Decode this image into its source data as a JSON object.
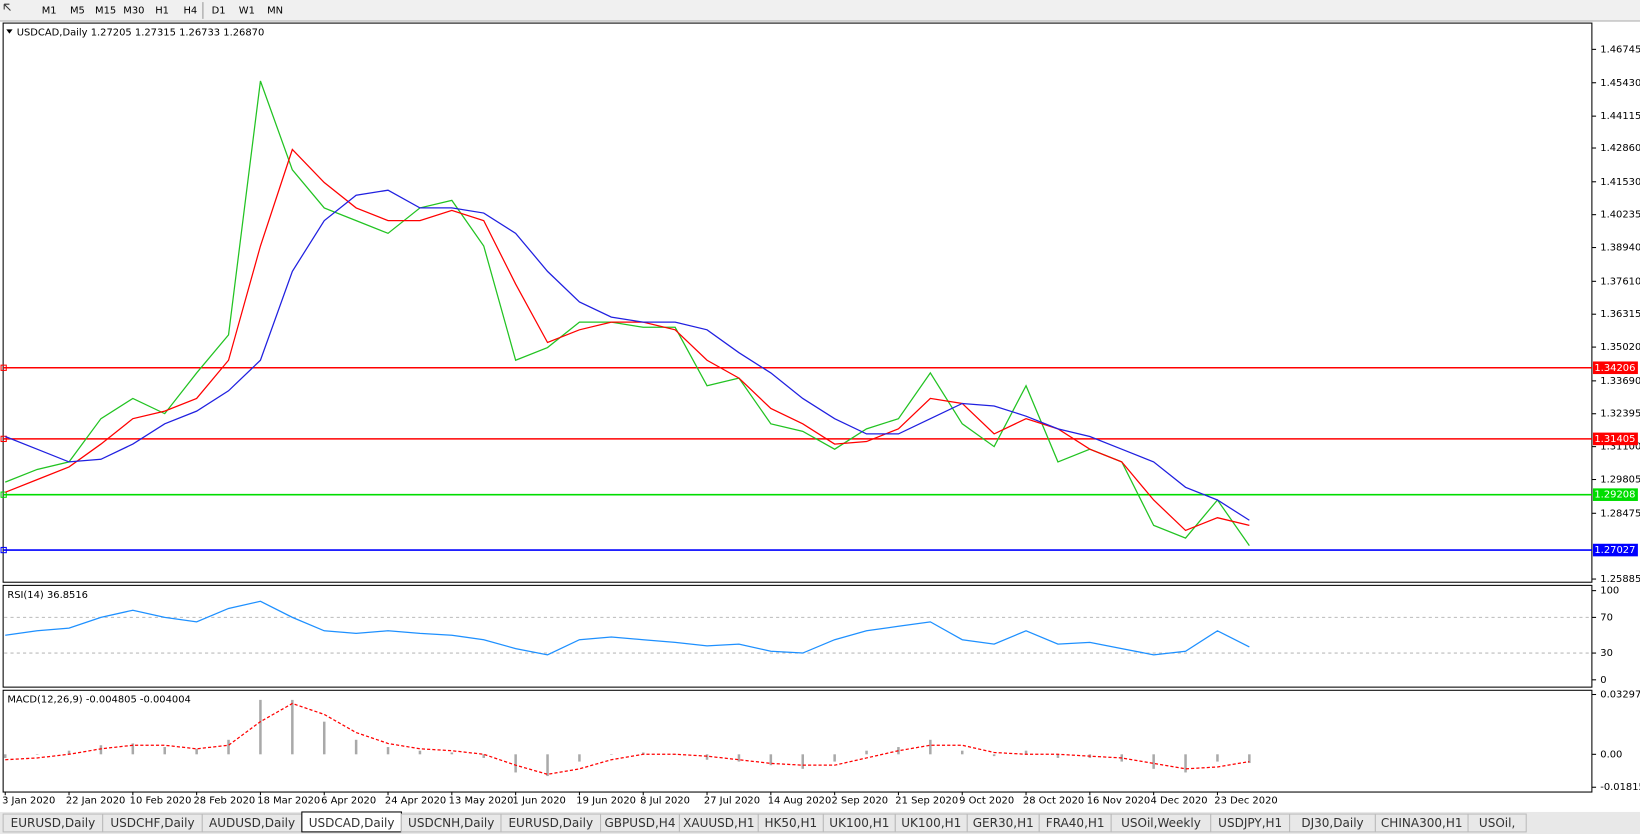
{
  "toolbar": {
    "timeframes": [
      "M1",
      "M5",
      "M15",
      "M30",
      "H1",
      "H4",
      "D1",
      "W1",
      "MN"
    ]
  },
  "chart_data": [
    {
      "type": "line",
      "title": "USDCAD,Daily  1.27205 1.27315 1.26733 1.26870",
      "categories": [
        "3 Jan 2020",
        null,
        "22 Jan 2020",
        null,
        "10 Feb 2020",
        null,
        "28 Feb 2020",
        null,
        "18 Mar 2020",
        null,
        "6 Apr 2020",
        null,
        "24 Apr 2020",
        null,
        "13 May 2020",
        null,
        "1 Jun 2020",
        null,
        "19 Jun 2020",
        null,
        "8 Jul 2020",
        null,
        "27 Jul 2020",
        null,
        "14 Aug 2020",
        null,
        "2 Sep 2020",
        null,
        "21 Sep 2020",
        null,
        "9 Oct 2020",
        null,
        "28 Oct 2020",
        null,
        "16 Nov 2020",
        null,
        "4 Dec 2020",
        null,
        "23 Dec 2020",
        null
      ],
      "series": [
        {
          "color": "#22c322",
          "values": [
            1.297,
            1.302,
            1.305,
            1.322,
            1.33,
            1.324,
            1.34,
            1.355,
            1.455,
            1.42,
            1.405,
            1.4,
            1.395,
            1.405,
            1.408,
            1.39,
            1.345,
            1.35,
            1.36,
            1.36,
            1.358,
            1.358,
            1.335,
            1.338,
            1.32,
            1.317,
            1.31,
            1.318,
            1.322,
            1.34,
            1.32,
            1.311,
            1.335,
            1.305,
            1.31,
            1.305,
            1.28,
            1.275,
            1.29,
            1.272
          ]
        },
        {
          "color": "#ff0000",
          "values": [
            1.293,
            1.298,
            1.303,
            1.312,
            1.322,
            1.325,
            1.33,
            1.345,
            1.39,
            1.428,
            1.415,
            1.405,
            1.4,
            1.4,
            1.404,
            1.4,
            1.375,
            1.352,
            1.357,
            1.36,
            1.36,
            1.357,
            1.345,
            1.338,
            1.326,
            1.32,
            1.312,
            1.313,
            1.318,
            1.33,
            1.328,
            1.316,
            1.322,
            1.318,
            1.31,
            1.305,
            1.29,
            1.278,
            1.283,
            1.28
          ]
        },
        {
          "color": "#2020e0",
          "values": [
            1.315,
            1.31,
            1.305,
            1.306,
            1.312,
            1.32,
            1.325,
            1.333,
            1.345,
            1.38,
            1.4,
            1.41,
            1.412,
            1.405,
            1.405,
            1.403,
            1.395,
            1.38,
            1.368,
            1.362,
            1.36,
            1.36,
            1.357,
            1.348,
            1.34,
            1.33,
            1.322,
            1.316,
            1.316,
            1.322,
            1.328,
            1.327,
            1.323,
            1.318,
            1.315,
            1.31,
            1.305,
            1.295,
            1.29,
            1.282
          ]
        }
      ],
      "levels": [
        {
          "value": 1.34206,
          "color": "#ff0000"
        },
        {
          "value": 1.31405,
          "color": "#ff0000"
        },
        {
          "value": 1.29208,
          "color": "#00dd00"
        },
        {
          "value": 1.27027,
          "color": "#0000ff"
        }
      ],
      "ylim": [
        1.2576,
        1.4778
      ],
      "yticks": [
        1.46745,
        {
          "value": 1.4543,
          "label": "1.45430"
        },
        1.44115,
        {
          "value": 1.4286,
          "label": "1.42860"
        },
        {
          "value": 1.4153,
          "label": "1.41530"
        },
        1.40235,
        {
          "value": 1.3894,
          "label": "1.38940"
        },
        {
          "value": 1.3761,
          "label": "1.37610"
        },
        1.36315,
        {
          "value": 1.3502,
          "label": "1.35020"
        },
        {
          "value": 1.3369,
          "label": "1.33690"
        },
        1.32395,
        {
          "value": 1.311,
          "label": "1.31100"
        },
        1.29805,
        1.28475,
        1.25885
      ]
    },
    {
      "type": "line",
      "title": "RSI(14) 36.8516",
      "series": [
        {
          "color": "#1e90ff",
          "values": [
            50,
            55,
            58,
            70,
            78,
            70,
            65,
            80,
            88,
            70,
            55,
            52,
            55,
            52,
            50,
            45,
            35,
            28,
            45,
            48,
            45,
            42,
            38,
            40,
            32,
            30,
            45,
            55,
            60,
            65,
            45,
            40,
            55,
            40,
            42,
            35,
            28,
            32,
            55,
            36.8516
          ]
        }
      ],
      "ylim": [
        -8.2,
        105.9
      ],
      "yticks": [
        100,
        70,
        30,
        0
      ],
      "levels": [
        70,
        30
      ]
    },
    {
      "type": "macd",
      "title": "MACD(12,26,9) -0.004805 -0.004004",
      "series": [
        {
          "type": "bar",
          "color": "#a9a9a9",
          "values": [
            -0.002,
            0.0,
            0.002,
            0.005,
            0.006,
            0.004,
            0.003,
            0.008,
            0.03,
            0.03,
            0.018,
            0.008,
            0.004,
            0.002,
            0.001,
            -0.002,
            -0.01,
            -0.012,
            -0.004,
            0.0,
            0.001,
            0.0,
            -0.003,
            -0.004,
            -0.006,
            -0.008,
            -0.004,
            0.002,
            0.004,
            0.008,
            0.002,
            -0.001,
            0.002,
            -0.002,
            -0.002,
            -0.004,
            -0.008,
            -0.01,
            -0.004,
            -0.004805
          ]
        },
        {
          "type": "line",
          "color": "#ff0000",
          "dashed": true,
          "values": [
            -0.003,
            -0.002,
            0.0,
            0.003,
            0.005,
            0.005,
            0.003,
            0.005,
            0.018,
            0.028,
            0.022,
            0.012,
            0.006,
            0.003,
            0.002,
            0.0,
            -0.006,
            -0.011,
            -0.008,
            -0.003,
            0.0,
            0.0,
            -0.001,
            -0.003,
            -0.005,
            -0.006,
            -0.006,
            -0.002,
            0.002,
            0.005,
            0.005,
            0.001,
            0.0,
            0.0,
            -0.001,
            -0.002,
            -0.005,
            -0.008,
            -0.007,
            -0.004004
          ]
        }
      ],
      "ylim": [
        -0.0208,
        0.0353
      ],
      "yticks": [
        0.032972,
        {
          "value": 0,
          "label": "0.00"
        },
        -0.018154
      ]
    }
  ],
  "tabs": [
    "EURUSD,Daily",
    "USDCHF,Daily",
    "AUDUSD,Daily",
    "USDCAD,Daily",
    "USDCNH,Daily",
    "EURUSD,Daily",
    "GBPUSD,H4",
    "XAUUSD,H1",
    "HK50,H1",
    "UK100,H1",
    "UK100,H1",
    "GER30,H1",
    "FRA40,H1",
    "USOil,Weekly",
    "USDJPY,H1",
    "DJ30,Daily",
    "CHINA300,H1",
    "USOil,"
  ],
  "active_tab": 3
}
